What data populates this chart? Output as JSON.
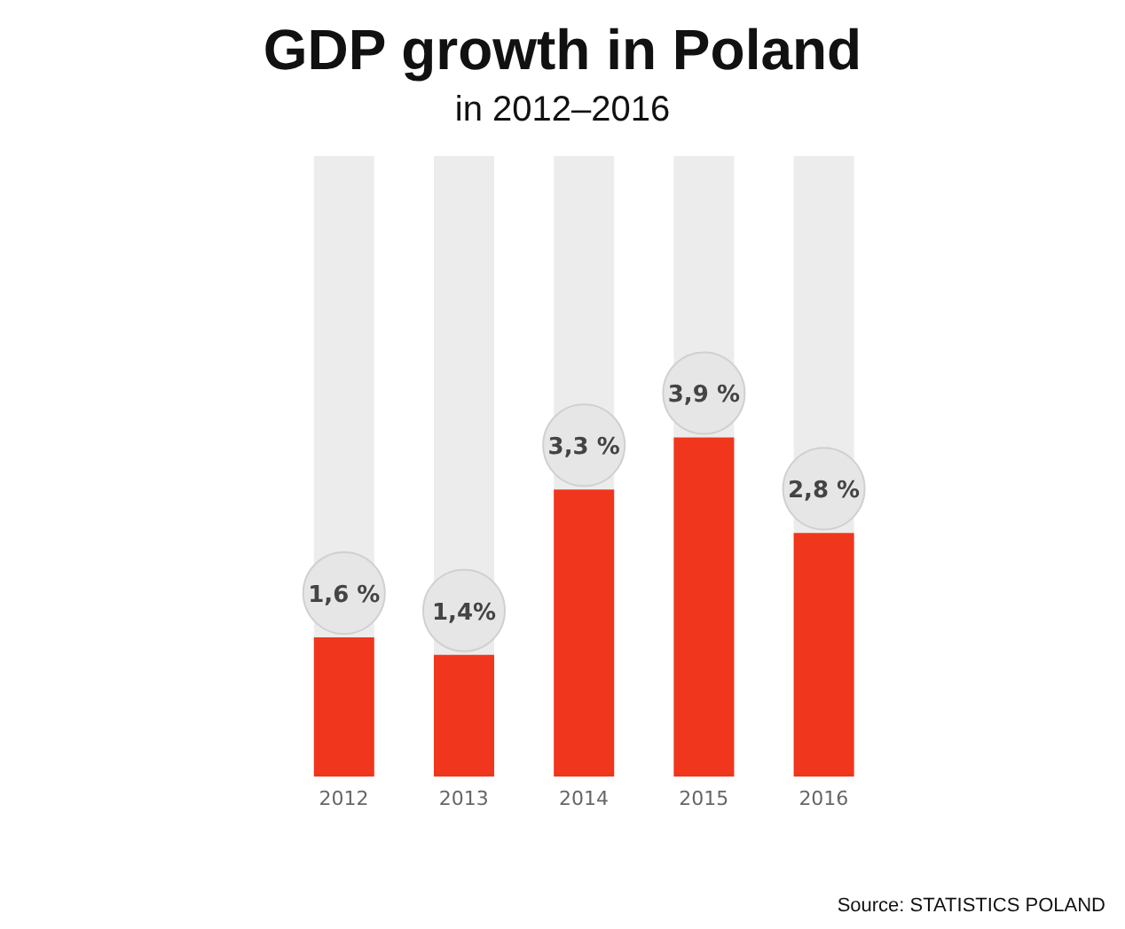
{
  "chart_data": {
    "type": "bar",
    "title": "GDP growth in Poland",
    "subtitle": "in 2012–2016",
    "categories": [
      "2012",
      "2013",
      "2014",
      "2015",
      "2016"
    ],
    "values": [
      1.6,
      1.4,
      3.3,
      3.9,
      2.8
    ],
    "value_labels": [
      "1,6 %",
      "1,4%",
      "3,3 %",
      "3,9 %",
      "2,8 %"
    ],
    "color": "#f0361c",
    "annotations": [
      "Source: STATISTICS POLAND"
    ]
  }
}
